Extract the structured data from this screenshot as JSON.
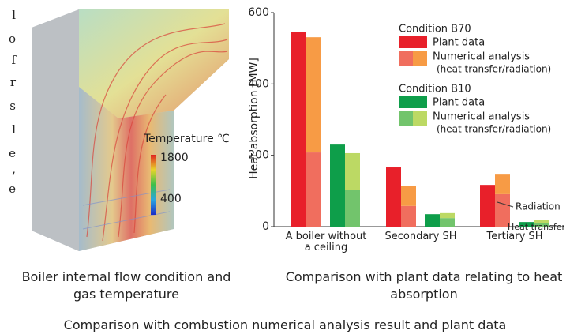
{
  "figure": {
    "cropped_text": [
      "l",
      "o",
      "f",
      "r",
      "s",
      "l",
      "e",
      ",",
      "e"
    ],
    "colorbar": {
      "title": "Temperature ℃",
      "clim": [
        400,
        1800
      ],
      "ticks": [
        1800,
        400
      ]
    },
    "caption": "Boiler internal flow condition and gas temperature"
  },
  "chart_data": {
    "type": "bar",
    "ylabel": "Heat absorption [MW]",
    "ylim": [
      0,
      600
    ],
    "yticks": [
      0,
      200,
      400,
      600
    ],
    "categories": [
      "A boiler without a ceiling",
      "Secondary SH",
      "Tertiary SH"
    ],
    "groups": [
      {
        "title": "Condition B70",
        "plant": {
          "label": "Plant data",
          "color": "#e8202a",
          "values": [
            545,
            166,
            117
          ]
        },
        "numerical": {
          "label": "Numerical analysis",
          "sublabel": "(heat transfer/radiation)",
          "series": [
            {
              "color": "#f06e5e",
              "values": [
                208,
                58,
                91
              ]
            },
            {
              "color": "#f79b45",
              "values": [
                323,
                55,
                57
              ]
            }
          ]
        }
      },
      {
        "title": "Condition B10",
        "plant": {
          "label": "Plant data",
          "color": "#0e9e4a",
          "values": [
            230,
            35,
            13
          ]
        },
        "numerical": {
          "label": "Numerical analysis",
          "sublabel": "(heat transfer/radiation)",
          "series": [
            {
              "color": "#72c46c",
              "values": [
                102,
                24,
                11
              ]
            },
            {
              "color": "#bcd964",
              "values": [
                104,
                14,
                7
              ]
            }
          ]
        }
      }
    ],
    "annotations": [
      "Radiation",
      "Heat transfer"
    ],
    "caption": "Comparison with plant data relating to heat absorption"
  },
  "footer": "Comparison with combustion numerical analysis result and plant data"
}
